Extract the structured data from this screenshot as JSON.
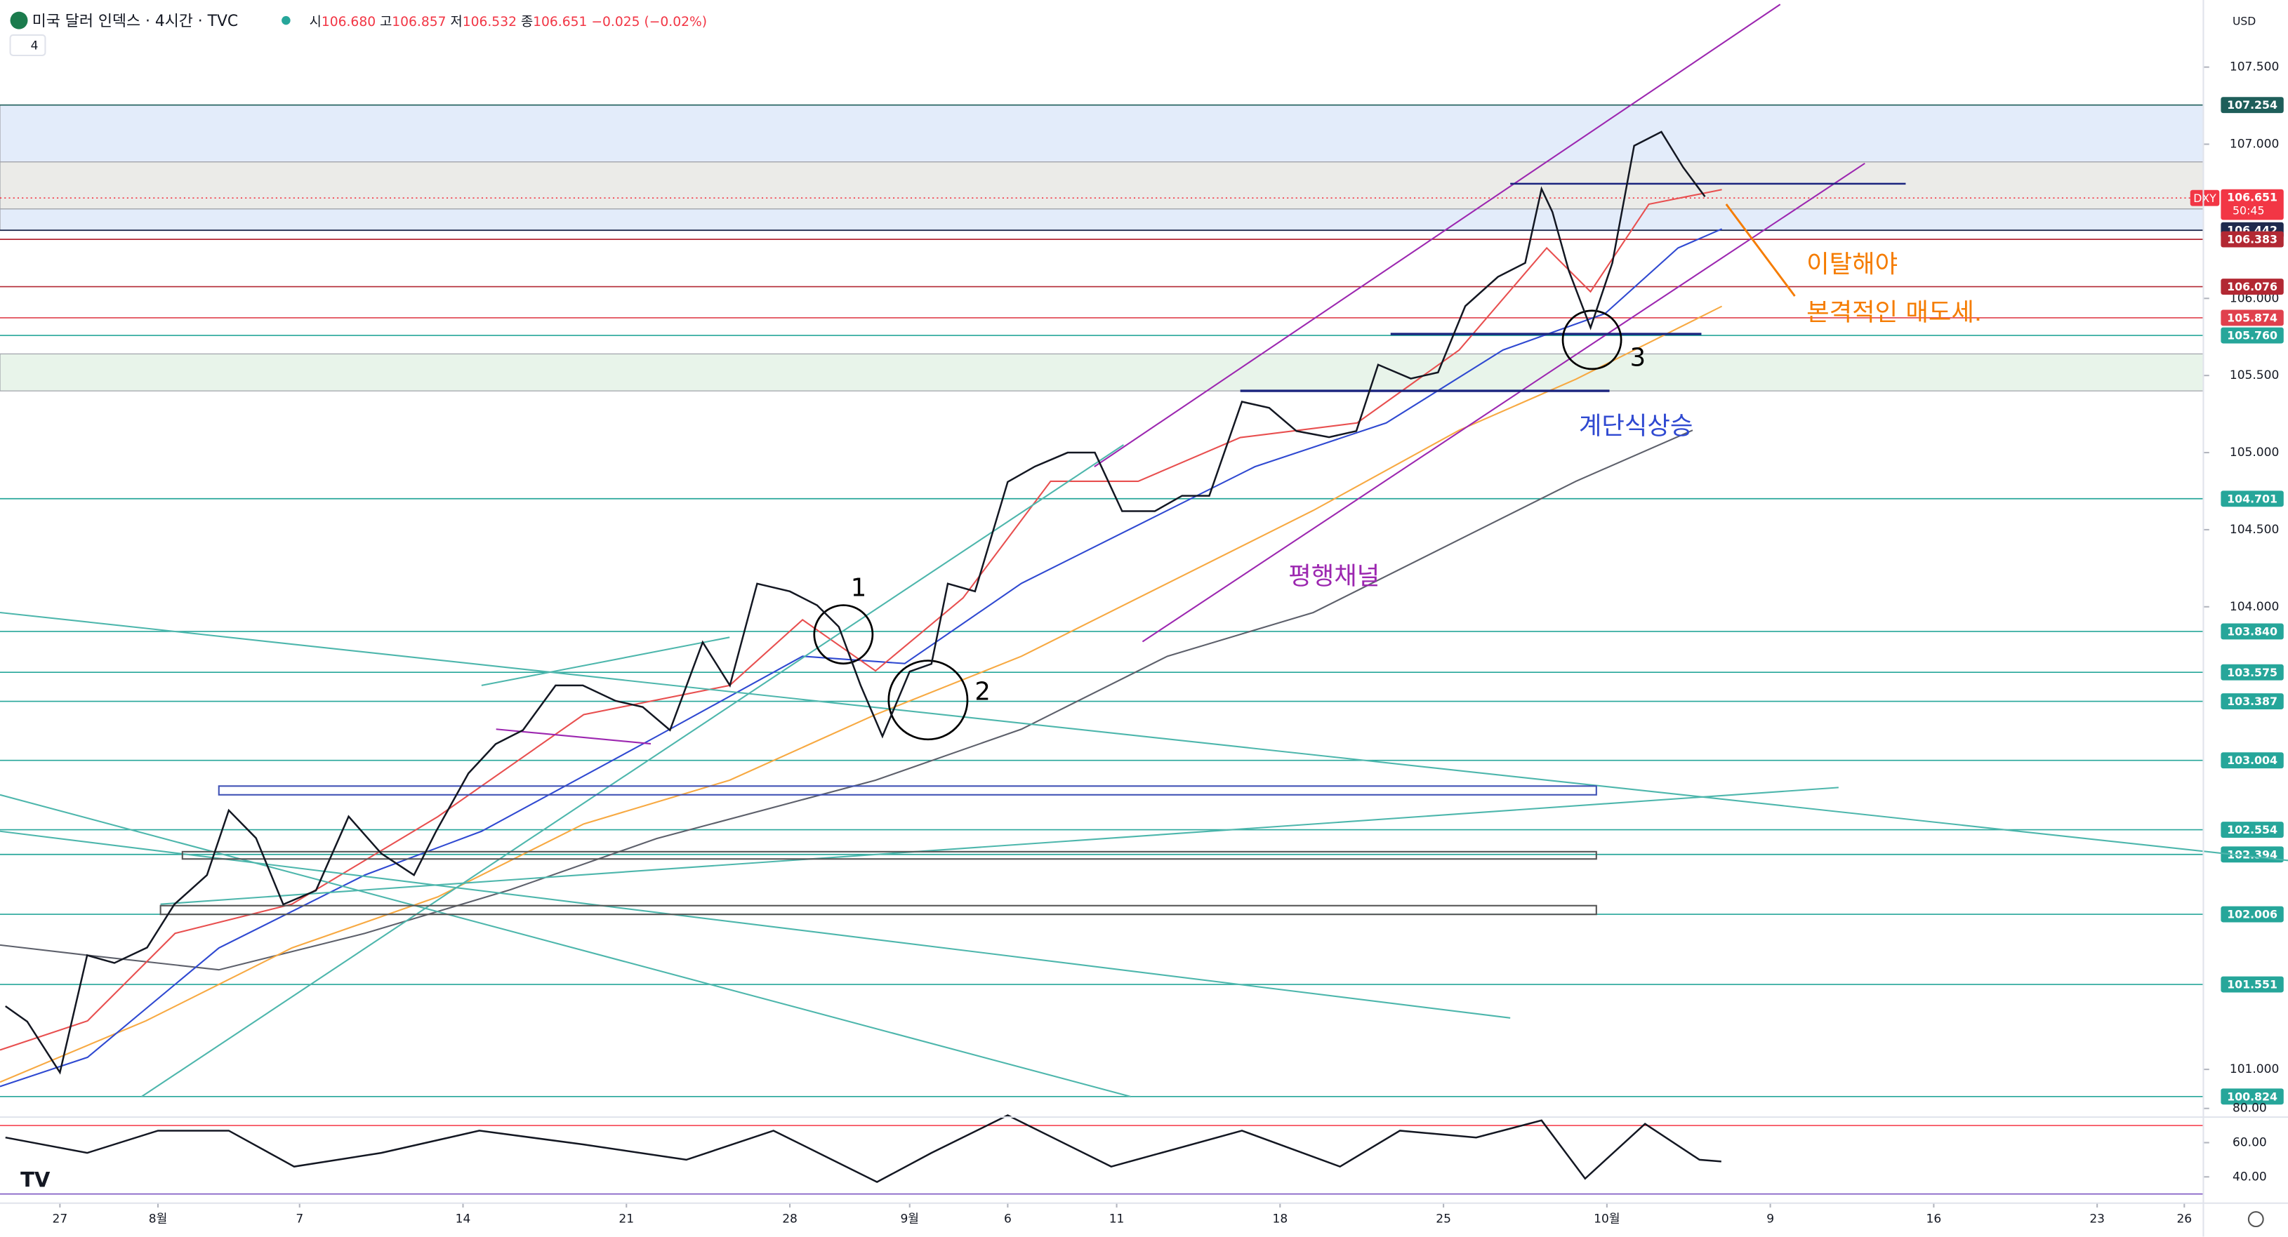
{
  "header": {
    "symbol_title": "미국 달러 인덱스 · 4시간 · TVC",
    "open_label": "시",
    "open": "106.680",
    "high_label": "고",
    "high": "106.857",
    "low_label": "저",
    "low": "106.532",
    "close_label": "종",
    "close": "106.651",
    "change": "−0.025 (−0.02%)",
    "indicator_count": "4",
    "currency": "USD"
  },
  "annotations": {
    "mark_1": "1",
    "mark_2": "2",
    "mark_3": "3",
    "channel": "평행채널",
    "staircase": "계단식상승",
    "break_1": "이탈해야",
    "break_2": "본격적인 매도세."
  },
  "chart_data": [
    {
      "type": "line",
      "color": "#131722",
      "x": [
        -10,
        -6,
        0,
        5,
        10,
        16,
        21,
        27,
        31,
        36,
        41,
        47,
        53,
        59,
        65,
        69,
        75,
        80,
        85,
        91,
        96,
        102,
        107,
        112,
        118,
        123,
        128,
        134,
        139,
        143,
        147,
        151,
        156,
        160,
        163,
        168,
        174,
        179,
        185,
        190,
        195,
        201,
        206,
        211,
        217,
        222,
        227,
        233,
        238,
        242,
        248,
        253,
        258,
        264,
        269,
        272,
        274,
        277,
        281,
        285,
        289,
        294,
        298,
        302
      ],
      "values": [
        101.41,
        101.31,
        100.98,
        101.74,
        101.69,
        101.79,
        102.07,
        102.26,
        102.68,
        102.5,
        102.07,
        102.16,
        102.64,
        102.4,
        102.26,
        102.54,
        102.92,
        103.11,
        103.2,
        103.49,
        103.49,
        103.39,
        103.35,
        103.2,
        103.77,
        103.49,
        104.15,
        104.1,
        104.01,
        103.87,
        103.49,
        103.16,
        103.58,
        103.63,
        104.15,
        104.1,
        104.81,
        104.91,
        105.0,
        105.0,
        104.62,
        104.62,
        104.72,
        104.72,
        105.33,
        105.29,
        105.14,
        105.1,
        105.14,
        105.57,
        105.48,
        105.52,
        105.95,
        106.14,
        106.23,
        106.71,
        106.56,
        106.18,
        105.81,
        106.23,
        106.99,
        107.08,
        106.85,
        106.66
      ],
      "xlim": [
        -11,
        393.5
      ],
      "ylim": [
        100.7,
        107.935
      ],
      "xticks": [
        {
          "value": 0,
          "label": "27"
        },
        {
          "value": 18,
          "label": "8월"
        },
        {
          "value": 44,
          "label": "7"
        },
        {
          "value": 74,
          "label": "14"
        },
        {
          "value": 104,
          "label": "21"
        },
        {
          "value": 134,
          "label": "28"
        },
        {
          "value": 156,
          "label": "9월"
        },
        {
          "value": 174,
          "label": "6"
        },
        {
          "value": 194,
          "label": "11"
        },
        {
          "value": 224,
          "label": "18"
        },
        {
          "value": 254,
          "label": "25"
        },
        {
          "value": 284,
          "label": "10월"
        },
        {
          "value": 314,
          "label": "9"
        },
        {
          "value": 344,
          "label": "16"
        },
        {
          "value": 374,
          "label": "23"
        },
        {
          "value": 390,
          "label": "26"
        }
      ],
      "yticks": [
        {
          "value": 107.5,
          "label": "107.500"
        },
        {
          "value": 107,
          "label": "107.000"
        },
        {
          "value": 106,
          "label": "106.000"
        },
        {
          "value": 105.5,
          "label": "105.500"
        },
        {
          "value": 105,
          "label": "105.000"
        },
        {
          "value": 104.5,
          "label": "104.500"
        },
        {
          "value": 104,
          "label": "104.000"
        },
        {
          "value": 101,
          "label": "101.000"
        }
      ],
      "zones": [
        {
          "from": 106.885,
          "to": 107.254,
          "color": "#e3ecfa"
        },
        {
          "from": 106.58,
          "to": 106.885,
          "color": "#ebebe8"
        },
        {
          "from": 106.44,
          "to": 106.58,
          "color": "#e3ecfa"
        },
        {
          "from": 105.4,
          "to": 105.64,
          "color": "#e8f4ea"
        }
      ],
      "levels": [
        {
          "value": 107.254,
          "label": "107.254",
          "color": "#1e5e5a"
        },
        {
          "value": 106.442,
          "label": "106.442",
          "color": "#1f2a4d"
        },
        {
          "value": 106.383,
          "label": "106.383",
          "color": "#b22833"
        },
        {
          "value": 106.076,
          "label": "106.076",
          "color": "#b22833"
        },
        {
          "value": 105.874,
          "label": "105.874",
          "color": "#e0404d"
        },
        {
          "value": 105.76,
          "label": "105.760",
          "color": "#26a69a"
        },
        {
          "value": 104.701,
          "label": "104.701",
          "color": "#26a69a"
        },
        {
          "value": 103.84,
          "label": "103.840",
          "color": "#26a69a"
        },
        {
          "value": 103.575,
          "label": "103.575",
          "color": "#26a69a"
        },
        {
          "value": 103.387,
          "label": "103.387",
          "color": "#26a69a"
        },
        {
          "value": 103.004,
          "label": "103.004",
          "color": "#26a69a"
        },
        {
          "value": 102.554,
          "label": "102.554",
          "color": "#26a69a"
        },
        {
          "value": 102.394,
          "label": "102.394",
          "color": "#26a69a"
        },
        {
          "value": 102.006,
          "label": "102.006",
          "color": "#26a69a"
        },
        {
          "value": 101.551,
          "label": "101.551",
          "color": "#26a69a"
        },
        {
          "value": 100.824,
          "label": "100.824",
          "color": "#26a69a"
        }
      ],
      "current_price": {
        "value": 106.651,
        "label": "106.651",
        "symbol": "DXY",
        "countdown": "50:45",
        "color": "#f23645"
      }
    },
    {
      "type": "line",
      "color": "#131722",
      "x": [
        -10,
        5,
        18,
        31,
        43,
        59,
        77,
        96,
        115,
        131,
        150,
        160,
        174,
        193,
        217,
        235,
        246,
        260,
        272,
        280,
        291,
        301,
        305
      ],
      "values": [
        63,
        54,
        67,
        67,
        46,
        54,
        67,
        59,
        50,
        67,
        37,
        54,
        76,
        46,
        67,
        46,
        67,
        63,
        73,
        39,
        71,
        50,
        49
      ],
      "ylim": [
        27.2,
        84.3
      ],
      "yticks": [
        {
          "value": 80,
          "label": "80.00"
        },
        {
          "value": 60,
          "label": "60.00"
        },
        {
          "value": 40,
          "label": "40.00"
        }
      ],
      "bands": [
        {
          "value": 70,
          "color": "#f7525f"
        },
        {
          "value": 30,
          "color": "#7e57c2"
        }
      ]
    }
  ]
}
